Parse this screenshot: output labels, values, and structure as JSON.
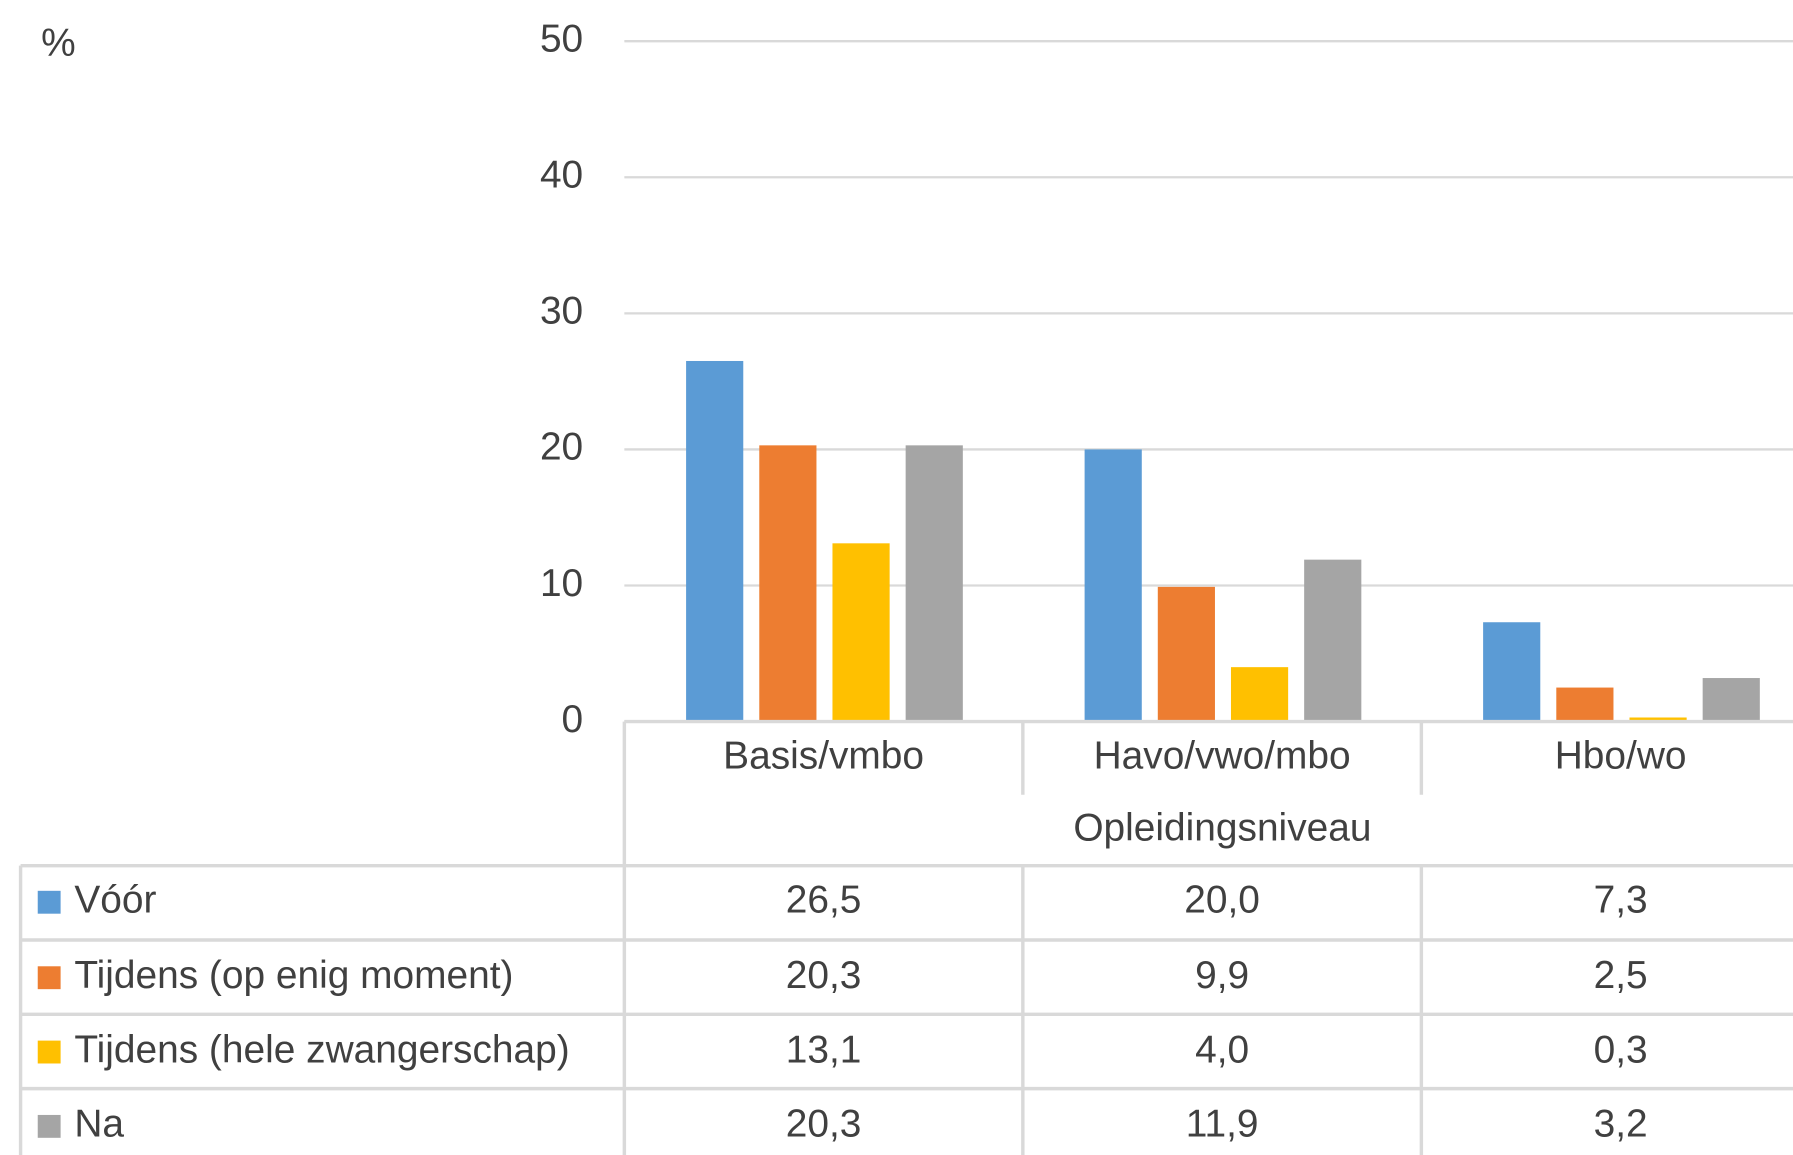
{
  "chart_data": {
    "type": "bar",
    "y_label": "%",
    "x_label": "Opleidingsniveau",
    "categories": [
      "Basis/vmbo",
      "Havo/vwo/mbo",
      "Hbo/wo"
    ],
    "series": [
      {
        "name": "Vóór",
        "color": "#5b9bd5",
        "values": [
          26.5,
          20.0,
          7.3
        ],
        "value_labels": [
          "26,5",
          "20,0",
          "7,3"
        ]
      },
      {
        "name": "Tijdens (op enig moment)",
        "color": "#ed7d31",
        "values": [
          20.3,
          9.9,
          2.5
        ],
        "value_labels": [
          "20,3",
          "9,9",
          "2,5"
        ]
      },
      {
        "name": "Tijdens (hele zwangerschap)",
        "color": "#ffc000",
        "values": [
          13.1,
          4.0,
          0.3
        ],
        "value_labels": [
          "13,1",
          "4,0",
          "0,3"
        ]
      },
      {
        "name": "Na",
        "color": "#a5a5a5",
        "values": [
          20.3,
          11.9,
          3.2
        ],
        "value_labels": [
          "20,3",
          "11,9",
          "3,2"
        ]
      }
    ],
    "ylim": [
      0,
      50
    ],
    "yticks": [
      0,
      10,
      20,
      30,
      40,
      50
    ],
    "grid": true
  }
}
